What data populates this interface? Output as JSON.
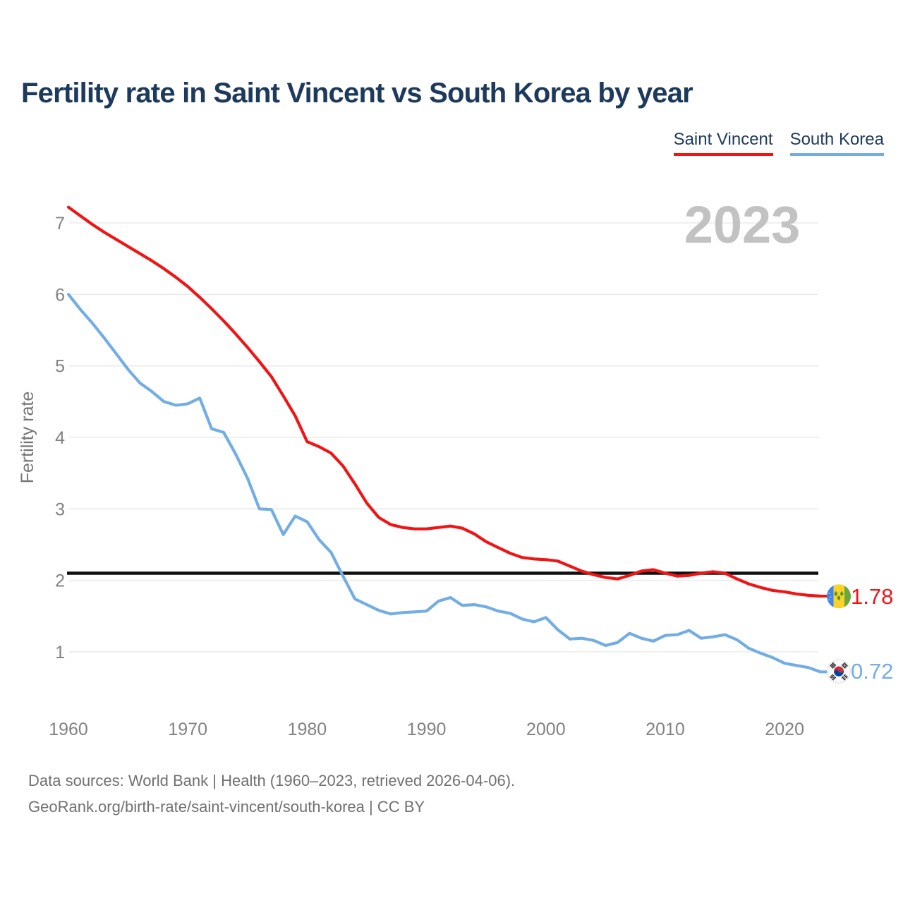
{
  "page": {
    "title": "Fertility rate in Saint Vincent vs South Korea by year",
    "watermark_year": "2023",
    "footer_line1": "Data sources: World Bank | Health (1960–2023, retrieved 2026-04-06).",
    "footer_line2": "GeoRank.org/birth-rate/saint-vincent/south-korea | CC BY"
  },
  "legend": [
    {
      "label": "Saint Vincent",
      "color": "#f01414"
    },
    {
      "label": "South Korea",
      "color": "#72ade4"
    }
  ],
  "chart_data": {
    "type": "line",
    "title": "Fertility rate in Saint Vincent vs South Korea by year",
    "xlabel": "",
    "ylabel": "Fertility rate",
    "x_start": 1960,
    "x_end": 2023,
    "xticks": [
      1960,
      1970,
      1980,
      1990,
      2000,
      2010,
      2020
    ],
    "yticks": [
      1,
      2,
      3,
      4,
      5,
      6,
      7
    ],
    "ylim": [
      0.4,
      7.4
    ],
    "grid": "horizontal",
    "legend_position": "top-right",
    "reference_line": {
      "value": 2.1,
      "color": "#111111"
    },
    "series": [
      {
        "name": "Saint Vincent",
        "color": "#f01414",
        "end_label": "1.78",
        "flag": "saint-vincent",
        "values": [
          7.22,
          7.1,
          6.98,
          6.87,
          6.77,
          6.67,
          6.57,
          6.47,
          6.36,
          6.24,
          6.11,
          5.96,
          5.8,
          5.63,
          5.45,
          5.26,
          5.06,
          4.85,
          4.58,
          4.3,
          3.94,
          3.87,
          3.78,
          3.6,
          3.35,
          3.08,
          2.88,
          2.78,
          2.74,
          2.72,
          2.72,
          2.74,
          2.76,
          2.73,
          2.65,
          2.54,
          2.46,
          2.38,
          2.32,
          2.3,
          2.29,
          2.27,
          2.2,
          2.13,
          2.08,
          2.04,
          2.02,
          2.07,
          2.13,
          2.15,
          2.1,
          2.06,
          2.07,
          2.1,
          2.12,
          2.1,
          2.02,
          1.95,
          1.9,
          1.86,
          1.84,
          1.81,
          1.79,
          1.78
        ]
      },
      {
        "name": "South Korea",
        "color": "#72ade4",
        "end_label": "0.72",
        "flag": "south-korea",
        "values": [
          6.0,
          5.79,
          5.6,
          5.39,
          5.17,
          4.95,
          4.76,
          4.64,
          4.5,
          4.45,
          4.47,
          4.55,
          4.12,
          4.07,
          3.77,
          3.43,
          3.0,
          2.99,
          2.64,
          2.9,
          2.82,
          2.57,
          2.39,
          2.06,
          1.74,
          1.66,
          1.58,
          1.53,
          1.55,
          1.56,
          1.57,
          1.71,
          1.76,
          1.65,
          1.66,
          1.63,
          1.57,
          1.54,
          1.46,
          1.42,
          1.48,
          1.31,
          1.18,
          1.19,
          1.16,
          1.09,
          1.13,
          1.26,
          1.19,
          1.15,
          1.23,
          1.24,
          1.3,
          1.19,
          1.21,
          1.24,
          1.17,
          1.05,
          0.98,
          0.92,
          0.84,
          0.81,
          0.78,
          0.72
        ]
      }
    ]
  }
}
